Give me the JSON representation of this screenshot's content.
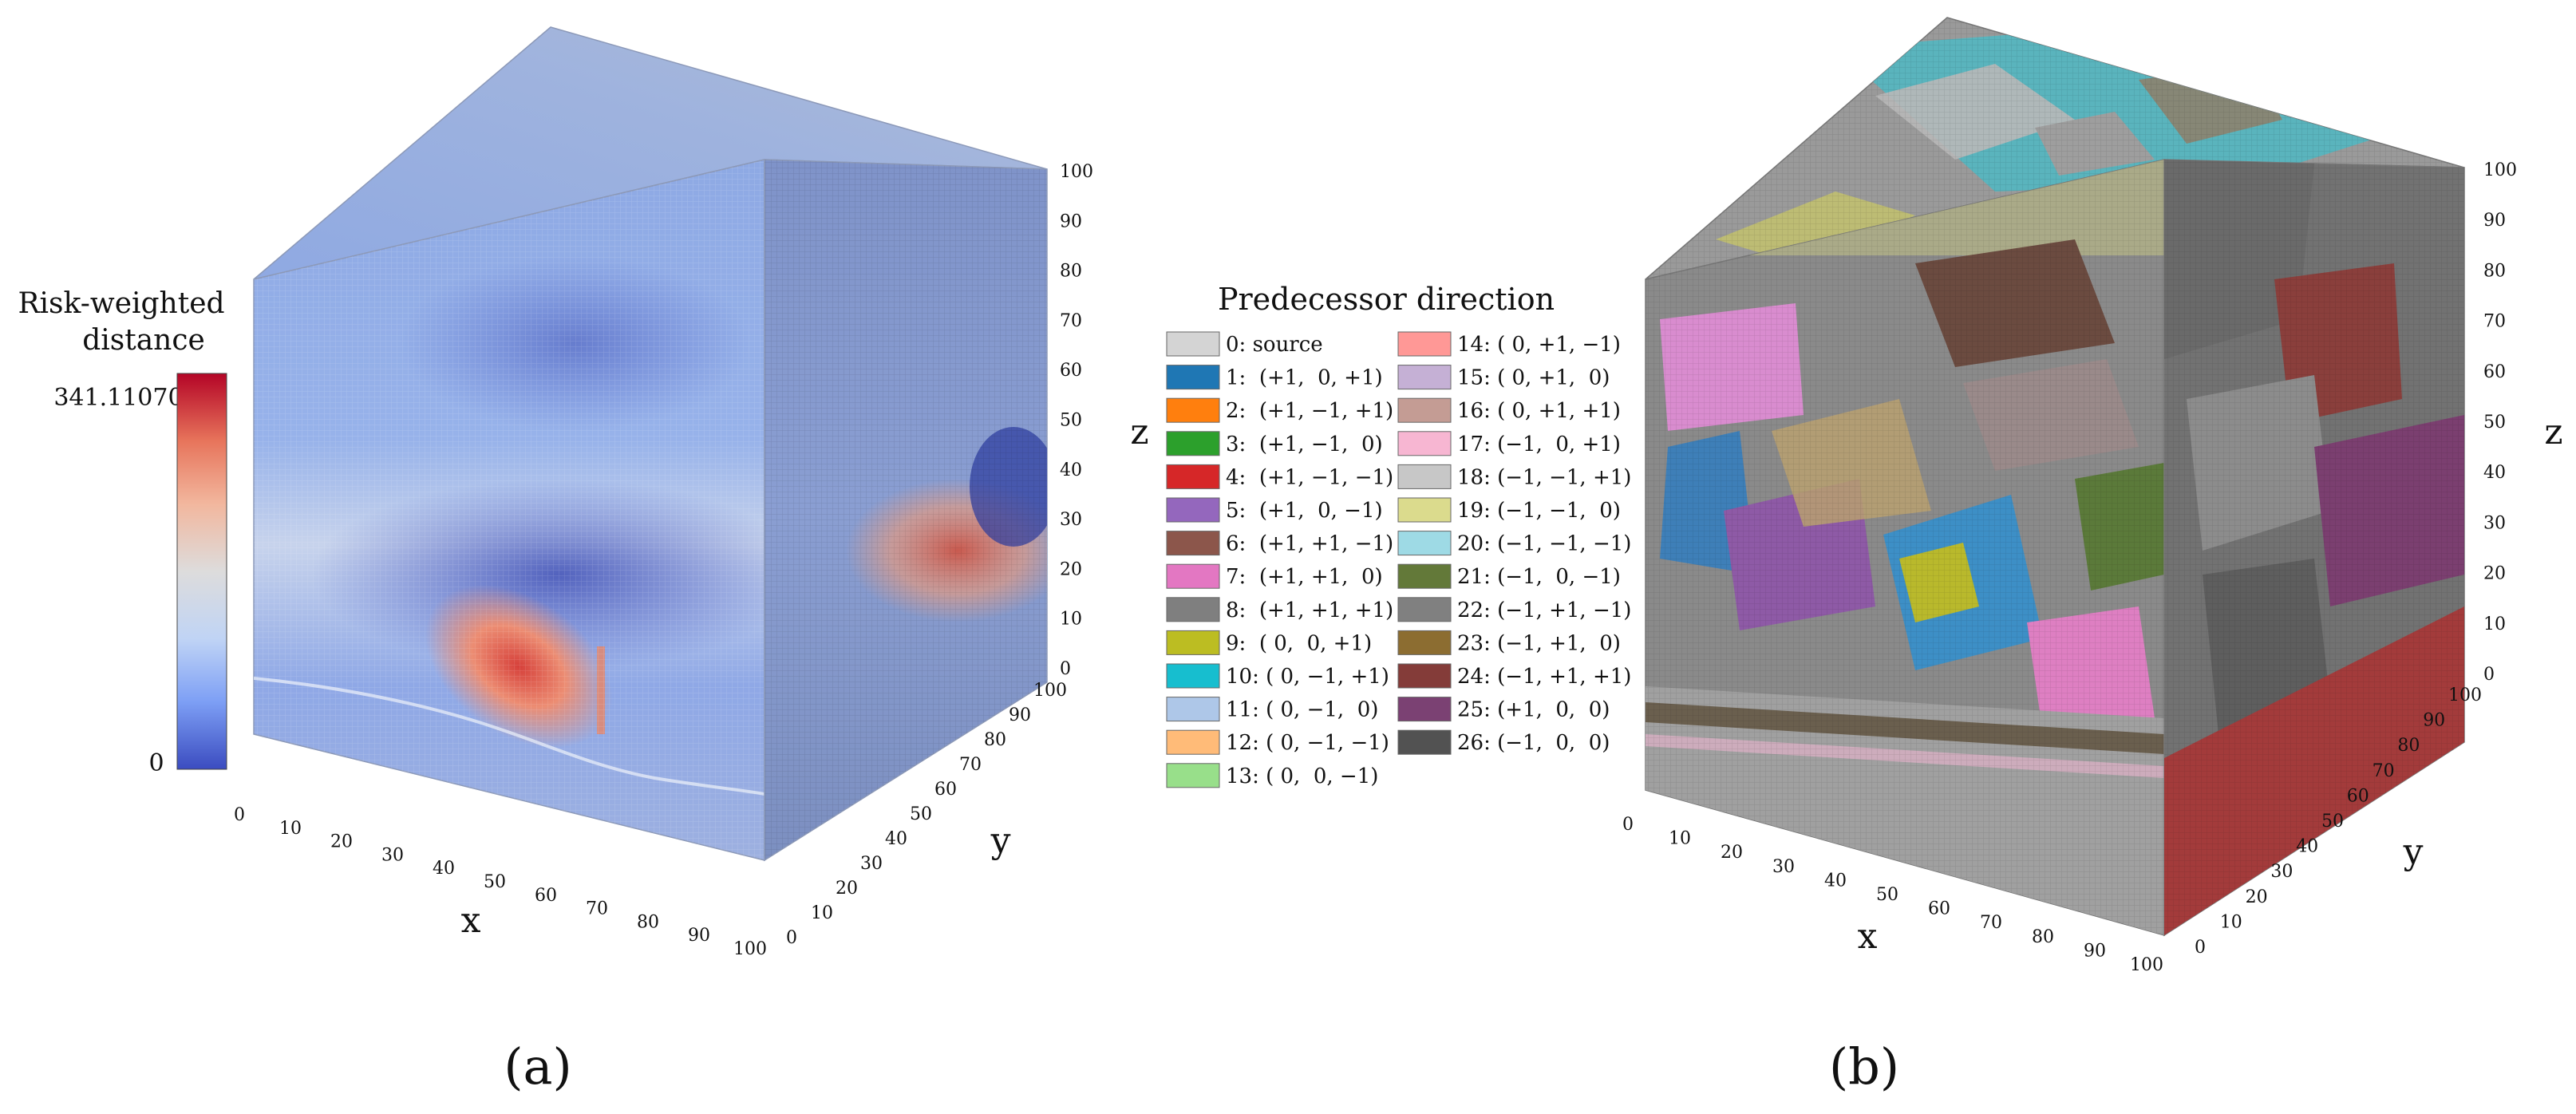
{
  "chart_data": [
    {
      "type": "heatmap",
      "panel_label": "(a)",
      "title": "",
      "xlabel": "x",
      "ylabel": "y",
      "zlabel": "z",
      "xlim": [
        0,
        100
      ],
      "ylim": [
        0,
        100
      ],
      "zlim": [
        0,
        100
      ],
      "x_ticks": [
        "0",
        "10",
        "20",
        "30",
        "40",
        "50",
        "60",
        "70",
        "80",
        "90",
        "100"
      ],
      "y_ticks": [
        "0",
        "10",
        "20",
        "30",
        "40",
        "50",
        "60",
        "70",
        "80",
        "90",
        "100"
      ],
      "z_ticks": [
        "0",
        "10",
        "20",
        "30",
        "40",
        "50",
        "60",
        "70",
        "80",
        "90",
        "100"
      ],
      "colorbar": {
        "title_line1": "Risk-weighted",
        "title_line2": "distance",
        "max_label": "341.110704",
        "min_label": "0",
        "min": 0,
        "max": 341.110704,
        "colormap": [
          "#3b4cc0",
          "#7d9ff5",
          "#c0d4f5",
          "#dddcdc",
          "#f2b79e",
          "#e7745b",
          "#b40426"
        ]
      },
      "colors": {
        "face_base": "#8ea9df",
        "hot": "#d8433b",
        "cold": "#3f52c4"
      }
    },
    {
      "type": "heatmap",
      "panel_label": "(b)",
      "title": "",
      "xlabel": "x",
      "ylabel": "y",
      "zlabel": "z",
      "xlim": [
        0,
        100
      ],
      "ylim": [
        0,
        100
      ],
      "zlim": [
        0,
        100
      ],
      "x_ticks": [
        "0",
        "10",
        "20",
        "30",
        "40",
        "50",
        "60",
        "70",
        "80",
        "90",
        "100"
      ],
      "y_ticks": [
        "0",
        "10",
        "20",
        "30",
        "40",
        "50",
        "60",
        "70",
        "80",
        "90",
        "100"
      ],
      "z_ticks": [
        "0",
        "10",
        "20",
        "30",
        "40",
        "50",
        "60",
        "70",
        "80",
        "90",
        "100"
      ],
      "legend": {
        "title": "Predecessor direction",
        "entries": [
          {
            "label": "0: source",
            "color": "#d4d4d4"
          },
          {
            "label": "1:  (+1,  0, +1)",
            "color": "#1f77b4"
          },
          {
            "label": "2:  (+1, −1, +1)",
            "color": "#ff7f0e"
          },
          {
            "label": "3:  (+1, −1,  0)",
            "color": "#2ca02c"
          },
          {
            "label": "4:  (+1, −1, −1)",
            "color": "#d62728"
          },
          {
            "label": "5:  (+1,  0, −1)",
            "color": "#9467bd"
          },
          {
            "label": "6:  (+1, +1, −1)",
            "color": "#8c564b"
          },
          {
            "label": "7:  (+1, +1,  0)",
            "color": "#e377c2"
          },
          {
            "label": "8:  (+1, +1, +1)",
            "color": "#7f7f7f"
          },
          {
            "label": "9:  ( 0,  0, +1)",
            "color": "#bcbd22"
          },
          {
            "label": "10: ( 0, −1, +1)",
            "color": "#17becf"
          },
          {
            "label": "11: ( 0, −1,  0)",
            "color": "#aec7e8"
          },
          {
            "label": "12: ( 0, −1, −1)",
            "color": "#ffbb78"
          },
          {
            "label": "13: ( 0,  0, −1)",
            "color": "#98df8a"
          },
          {
            "label": "14: ( 0, +1, −1)",
            "color": "#ff9896"
          },
          {
            "label": "15: ( 0, +1,  0)",
            "color": "#c5b0d5"
          },
          {
            "label": "16: ( 0, +1, +1)",
            "color": "#c49c94"
          },
          {
            "label": "17: (−1,  0, +1)",
            "color": "#f7b6d2"
          },
          {
            "label": "18: (−1, −1, +1)",
            "color": "#c7c7c7"
          },
          {
            "label": "19: (−1, −1,  0)",
            "color": "#dbdb8d"
          },
          {
            "label": "20: (−1, −1, −1)",
            "color": "#9edae5"
          },
          {
            "label": "21: (−1,  0, −1)",
            "color": "#637939"
          },
          {
            "label": "22: (−1, +1, −1)",
            "color": "#808080"
          },
          {
            "label": "23: (−1, +1,  0)",
            "color": "#8c6d31"
          },
          {
            "label": "24: (−1, +1, +1)",
            "color": "#843c39"
          },
          {
            "label": "25: (+1,  0,  0)",
            "color": "#7b4173"
          },
          {
            "label": "26: (−1,  0,  0)",
            "color": "#525252"
          }
        ]
      }
    }
  ]
}
